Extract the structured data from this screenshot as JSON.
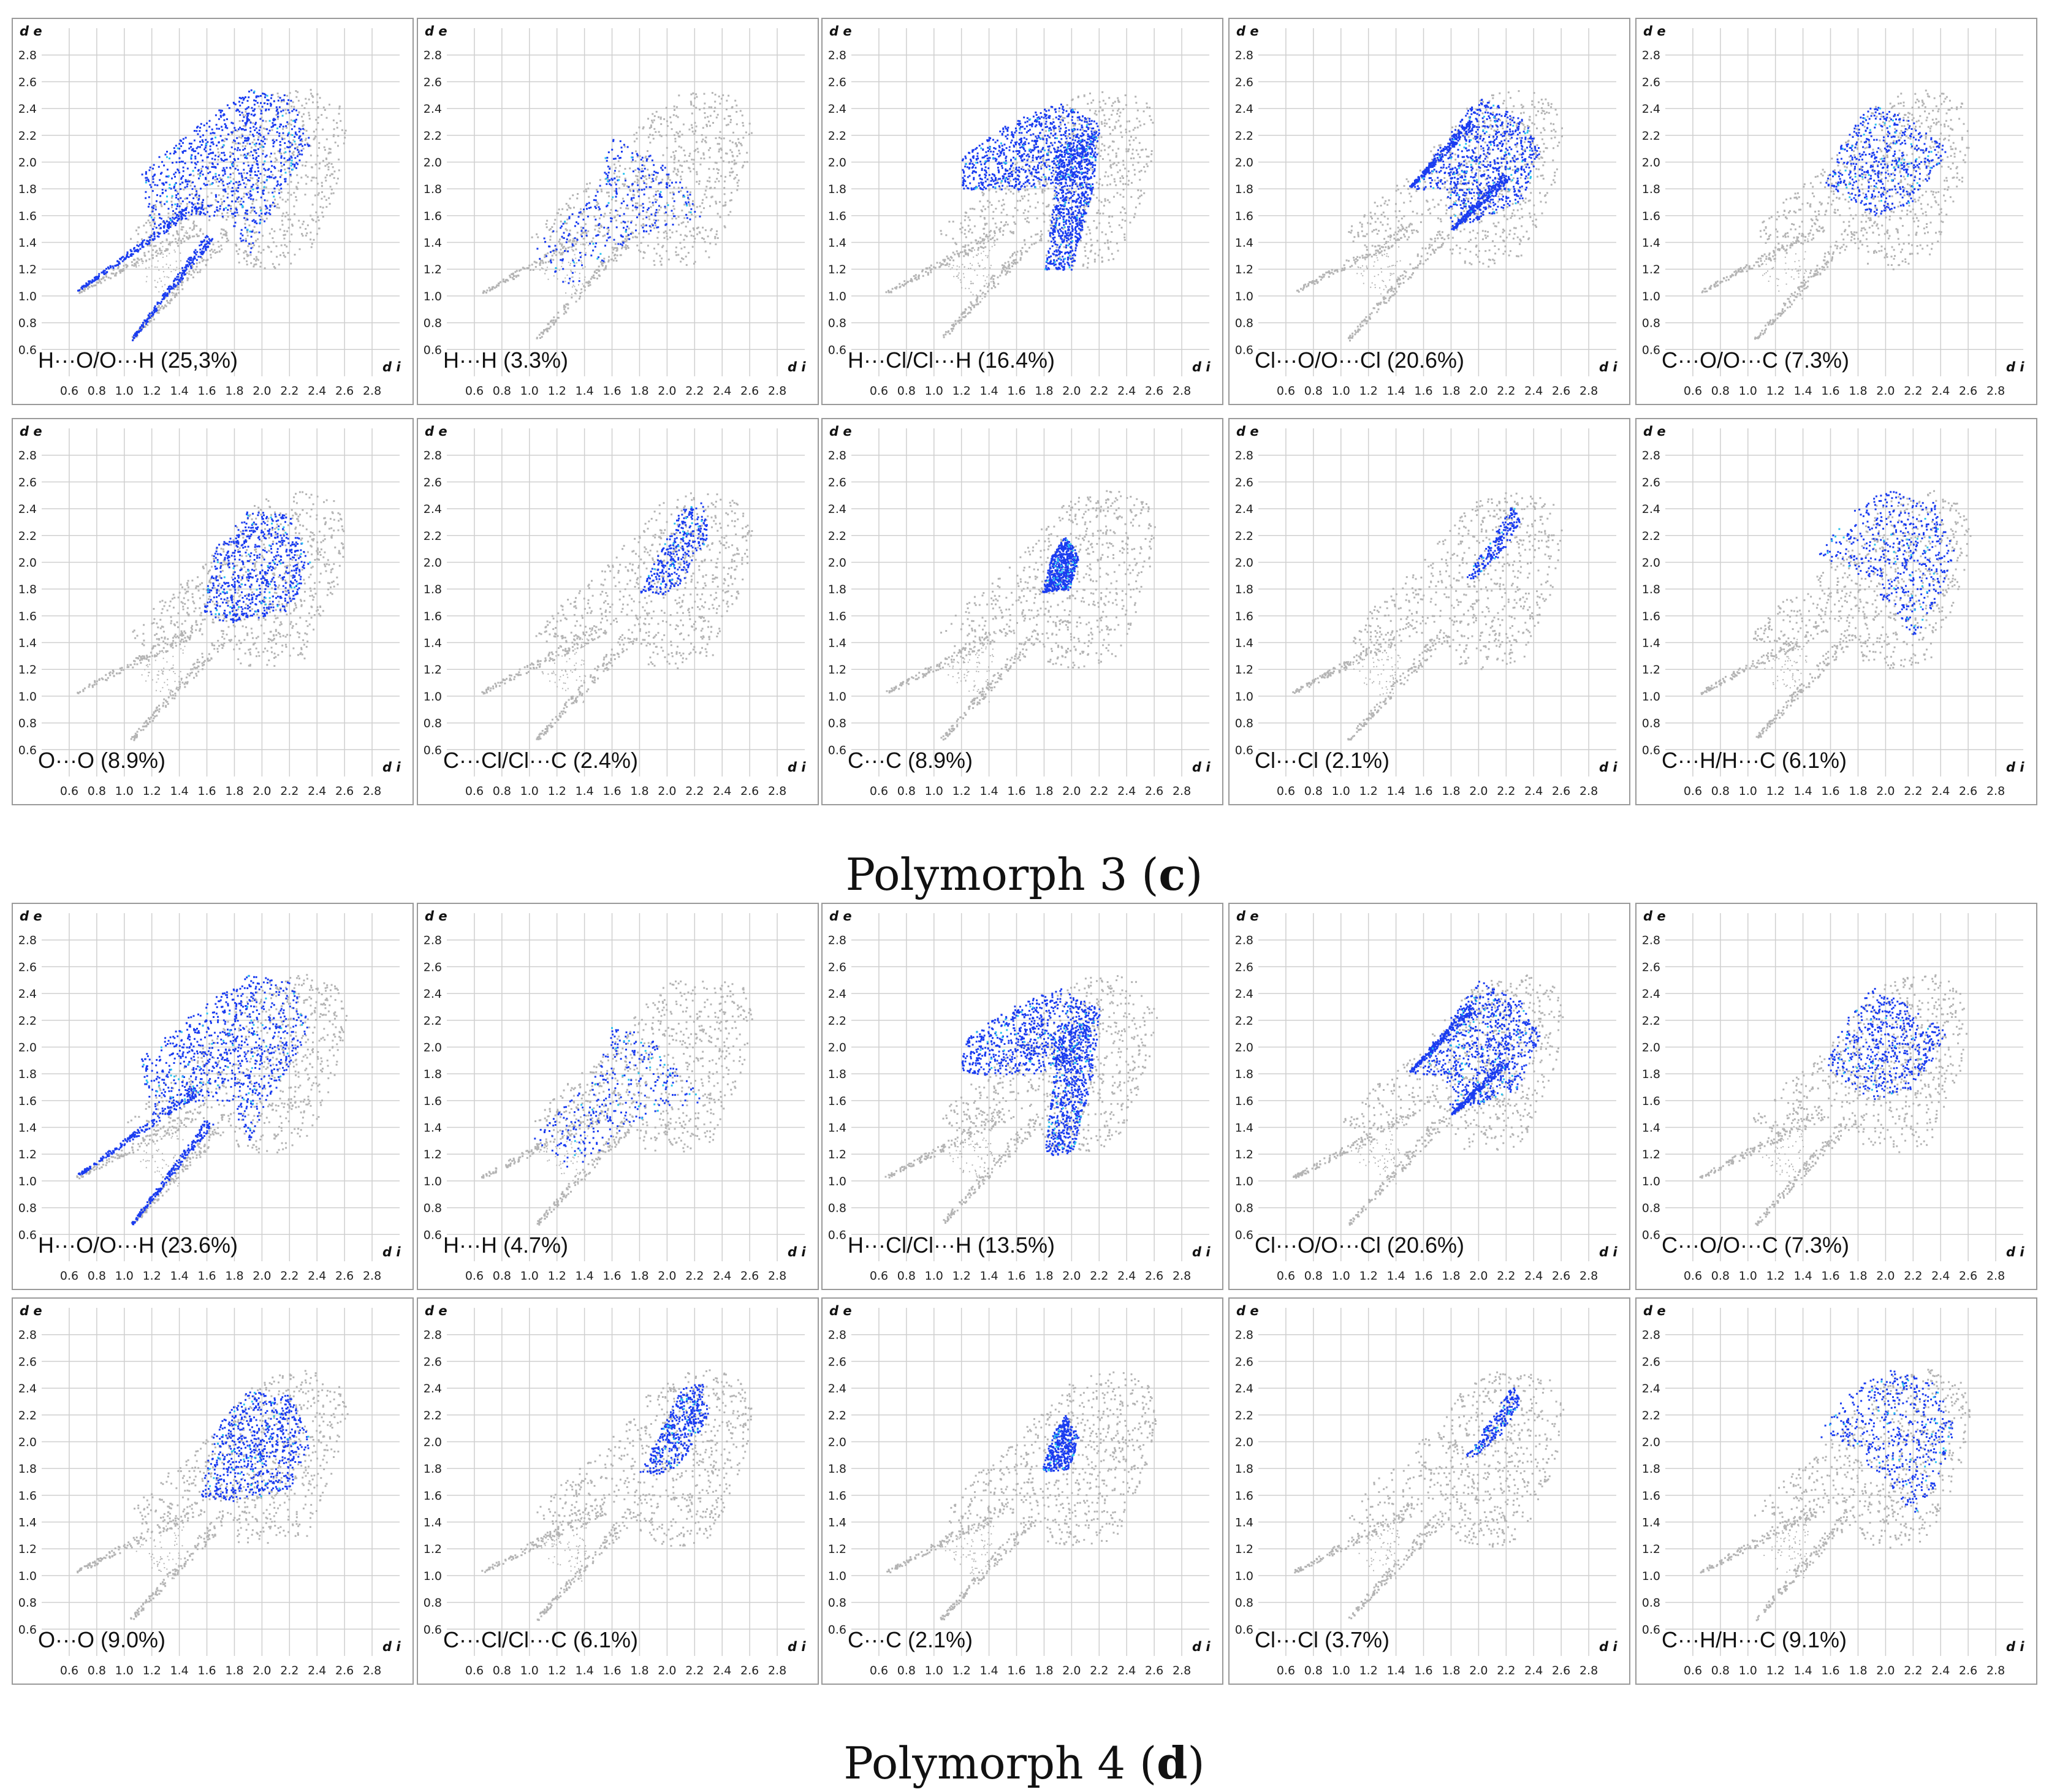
{
  "chart_data": {
    "type": "scatter",
    "polymorphs": [
      {
        "caption_prefix": "Polymorph 3 (",
        "caption_letter": "c",
        "caption_suffix": ")",
        "panels": [
          {
            "label": "H···O/O···H (25,3%)",
            "pct": 25.3,
            "pattern": "HO"
          },
          {
            "label": "H···H (3.3%)",
            "pct": 3.3,
            "pattern": "HH"
          },
          {
            "label": "H···Cl/Cl···H (16.4%)",
            "pct": 16.4,
            "pattern": "HCl"
          },
          {
            "label": "Cl···O/O···Cl (20.6%)",
            "pct": 20.6,
            "pattern": "ClO"
          },
          {
            "label": "C···O/O···C (7.3%)",
            "pct": 7.3,
            "pattern": "CO"
          },
          {
            "label": "O···O (8.9%)",
            "pct": 8.9,
            "pattern": "OO"
          },
          {
            "label": "C···Cl/Cl···C (2.4%)",
            "pct": 2.4,
            "pattern": "CCl"
          },
          {
            "label": "C···C (8.9%)",
            "pct": 8.9,
            "pattern": "CC"
          },
          {
            "label": "Cl···Cl (2.1%)",
            "pct": 2.1,
            "pattern": "ClCl"
          },
          {
            "label": "C···H/H···C (6.1%)",
            "pct": 6.1,
            "pattern": "CH"
          }
        ]
      },
      {
        "caption_prefix": "Polymorph 4 (",
        "caption_letter": "d",
        "caption_suffix": ")",
        "panels": [
          {
            "label": "H···O/O···H (23.6%)",
            "pct": 23.6,
            "pattern": "HO"
          },
          {
            "label": "H···H (4.7%)",
            "pct": 4.7,
            "pattern": "HH"
          },
          {
            "label": "H···Cl/Cl···H (13.5%)",
            "pct": 13.5,
            "pattern": "HCl"
          },
          {
            "label": "Cl···O/O···Cl (20.6%)",
            "pct": 20.6,
            "pattern": "ClO"
          },
          {
            "label": "C···O/O···C (7.3%)",
            "pct": 7.3,
            "pattern": "CO"
          },
          {
            "label": "O···O (9.0%)",
            "pct": 9.0,
            "pattern": "OO"
          },
          {
            "label": "C···Cl/Cl···C (6.1%)",
            "pct": 6.1,
            "pattern": "CCl"
          },
          {
            "label": "C···C (2.1%)",
            "pct": 2.1,
            "pattern": "CC"
          },
          {
            "label": "Cl···Cl (3.7%)",
            "pct": 3.7,
            "pattern": "ClCl"
          },
          {
            "label": "C···H/H···C (9.1%)",
            "pct": 9.1,
            "pattern": "CH"
          }
        ]
      }
    ],
    "xlabel": "d i",
    "ylabel": "d e",
    "xlim": [
      0.4,
      3.0
    ],
    "ylim": [
      0.4,
      3.0
    ],
    "xticks": [
      "0.6",
      "0.8",
      "1.0",
      "1.2",
      "1.4",
      "1.6",
      "1.8",
      "2.0",
      "2.2",
      "2.4",
      "2.6",
      "2.8"
    ],
    "yticks": [
      "0.6",
      "0.8",
      "1.0",
      "1.2",
      "1.4",
      "1.6",
      "1.8",
      "2.0",
      "2.2",
      "2.4",
      "2.6",
      "2.8"
    ],
    "grid": true,
    "colors": {
      "background_points": "#b4b4b4",
      "highlight_points": "#1a3cf0",
      "highlight_dense": "#29c4ee",
      "grid": "#cfcfcf"
    }
  }
}
